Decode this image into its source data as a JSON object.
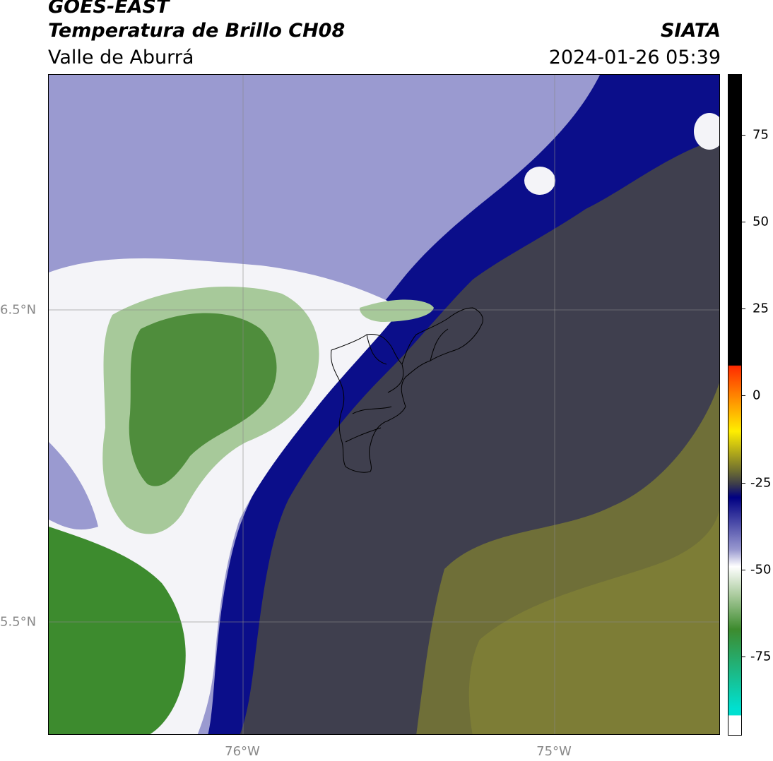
{
  "header": {
    "satellite": "GOES-EAST",
    "product": "Temperatura de Brillo CH08",
    "region": "Valle de Aburrá",
    "organization": "SIATA",
    "datetime": "2024-01-26 05:39"
  },
  "axes": {
    "lat_labels": [
      "6.5°N",
      "5.5°N"
    ],
    "lon_labels": [
      "76°W",
      "75°W"
    ]
  },
  "colorbar": {
    "ticks": [
      "75",
      "50",
      "25",
      "0",
      "-25",
      "-50",
      "-75"
    ],
    "colors": {
      "black": "#000000",
      "red": "#ff2a00",
      "orange": "#ff8c00",
      "yellow": "#ffee00",
      "olive": "#6e6e30",
      "gray": "#3c3c4a",
      "navy": "#000082",
      "white": "#ffffff",
      "green": "#3d8b2e",
      "cyan": "#00e0d0"
    }
  },
  "map": {
    "colors": {
      "gray_dark": "#3d3d4c",
      "olive": "#7a7a34",
      "navy": "#0b0e8a",
      "lavender": "#9a9ad0",
      "white": "#f4f4f8",
      "light_green": "#a7c99a",
      "green": "#4f8d3c",
      "dark_green": "#3d8b2e"
    }
  }
}
